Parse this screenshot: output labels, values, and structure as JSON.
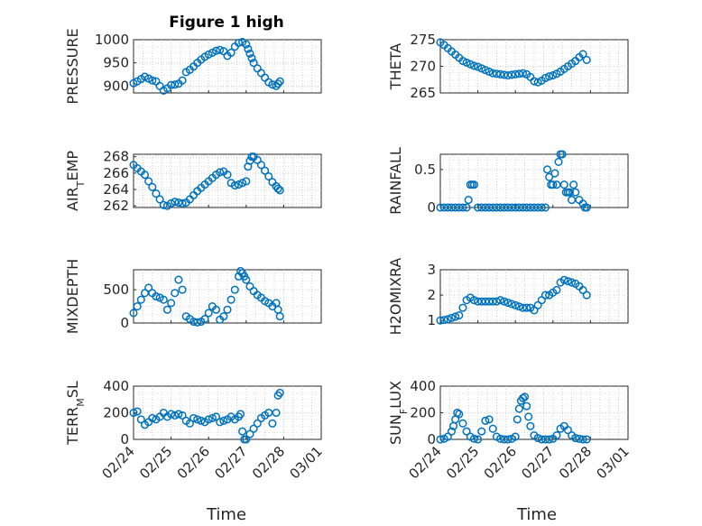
{
  "figure": {
    "title": "Figure 1 high",
    "xlabel": "Time",
    "x_ticks": [
      "02/24",
      "02/25",
      "02/26",
      "02/27",
      "02/28",
      "03/01"
    ],
    "marker_color": "#0072BD"
  },
  "chart_data": [
    {
      "type": "scatter",
      "name": "pressure",
      "ylabel": "PRESSURE",
      "title": "Figure 1 high",
      "xlabel": "",
      "ylim": [
        885,
        1000
      ],
      "y_ticks": [
        "900",
        "950",
        "1000"
      ],
      "y_tick_values": [
        900,
        950,
        1000
      ],
      "x_range": [
        0,
        5
      ],
      "x": [
        0.0,
        0.1,
        0.2,
        0.3,
        0.4,
        0.5,
        0.6,
        0.7,
        0.8,
        0.9,
        1.0,
        1.1,
        1.2,
        1.3,
        1.4,
        1.5,
        1.6,
        1.7,
        1.8,
        1.9,
        2.0,
        2.1,
        2.2,
        2.3,
        2.4,
        2.5,
        2.6,
        2.7,
        2.8,
        2.9,
        3.0,
        3.05,
        3.1,
        3.15,
        3.2,
        3.3,
        3.4,
        3.5,
        3.6,
        3.7,
        3.8,
        3.85,
        3.9
      ],
      "y": [
        906,
        910,
        915,
        920,
        916,
        912,
        910,
        900,
        890,
        895,
        902,
        903,
        905,
        912,
        930,
        935,
        942,
        950,
        957,
        963,
        968,
        972,
        976,
        978,
        975,
        965,
        972,
        985,
        993,
        995,
        990,
        980,
        970,
        960,
        950,
        938,
        928,
        918,
        908,
        903,
        900,
        905,
        910
      ]
    },
    {
      "type": "scatter",
      "name": "theta",
      "ylabel": "THETA",
      "ylim": [
        265,
        275
      ],
      "y_ticks": [
        "265",
        "270",
        "275"
      ],
      "y_tick_values": [
        265,
        270,
        275
      ],
      "x_range": [
        0,
        5
      ],
      "x": [
        0.0,
        0.1,
        0.2,
        0.3,
        0.4,
        0.5,
        0.6,
        0.7,
        0.8,
        0.9,
        1.0,
        1.1,
        1.2,
        1.3,
        1.4,
        1.5,
        1.6,
        1.7,
        1.8,
        1.9,
        2.0,
        2.1,
        2.2,
        2.3,
        2.4,
        2.5,
        2.6,
        2.7,
        2.8,
        2.9,
        3.0,
        3.1,
        3.2,
        3.3,
        3.4,
        3.5,
        3.6,
        3.7,
        3.8,
        3.9
      ],
      "y": [
        274.5,
        274.0,
        273.4,
        272.8,
        272.2,
        271.6,
        271.0,
        270.7,
        270.4,
        270.1,
        269.9,
        269.6,
        269.3,
        269.0,
        268.7,
        268.6,
        268.5,
        268.4,
        268.3,
        268.4,
        268.5,
        268.6,
        268.7,
        268.5,
        268.0,
        267.2,
        267.0,
        267.3,
        267.8,
        268.1,
        268.3,
        268.6,
        269.0,
        269.5,
        270.0,
        270.5,
        271.0,
        271.7,
        272.3,
        271.2
      ]
    },
    {
      "type": "scatter",
      "name": "air_temp",
      "ylabel": "AIR_TEMP",
      "ylim": [
        261.8,
        268.3
      ],
      "y_ticks": [
        "262",
        "264",
        "266",
        "268"
      ],
      "y_tick_values": [
        262,
        264,
        266,
        268
      ],
      "x_range": [
        0,
        5
      ],
      "x": [
        0.0,
        0.1,
        0.2,
        0.3,
        0.4,
        0.5,
        0.6,
        0.7,
        0.8,
        0.9,
        1.0,
        1.1,
        1.2,
        1.3,
        1.4,
        1.5,
        1.6,
        1.7,
        1.8,
        1.9,
        2.0,
        2.1,
        2.2,
        2.3,
        2.4,
        2.5,
        2.6,
        2.7,
        2.8,
        2.9,
        3.0,
        3.05,
        3.1,
        3.15,
        3.2,
        3.3,
        3.4,
        3.5,
        3.6,
        3.7,
        3.8,
        3.85,
        3.9
      ],
      "y": [
        267.0,
        266.6,
        266.2,
        265.8,
        265.0,
        264.3,
        263.5,
        262.8,
        262.1,
        262.0,
        262.3,
        262.5,
        262.4,
        262.3,
        262.4,
        262.8,
        263.3,
        263.8,
        264.2,
        264.6,
        265.0,
        265.4,
        265.8,
        266.1,
        266.2,
        265.8,
        264.8,
        264.5,
        264.6,
        264.8,
        265.0,
        266.8,
        267.5,
        268.0,
        268.0,
        267.6,
        267.0,
        266.3,
        265.6,
        264.9,
        264.4,
        264.1,
        263.9
      ]
    },
    {
      "type": "scatter",
      "name": "rainfall",
      "ylabel": "RAINFALL",
      "ylim": [
        0,
        0.7
      ],
      "y_ticks": [
        "0",
        "0.5"
      ],
      "y_tick_values": [
        0,
        0.5
      ],
      "x_range": [
        0,
        5
      ],
      "x": [
        0.0,
        0.1,
        0.2,
        0.3,
        0.4,
        0.5,
        0.6,
        0.7,
        0.75,
        0.8,
        0.85,
        0.9,
        1.0,
        1.1,
        1.2,
        1.3,
        1.4,
        1.5,
        1.6,
        1.7,
        1.8,
        1.9,
        2.0,
        2.1,
        2.2,
        2.3,
        2.4,
        2.5,
        2.6,
        2.7,
        2.8,
        2.85,
        2.9,
        2.95,
        3.0,
        3.05,
        3.1,
        3.15,
        3.2,
        3.25,
        3.3,
        3.35,
        3.4,
        3.45,
        3.5,
        3.55,
        3.6,
        3.7,
        3.8,
        3.85,
        3.9
      ],
      "y": [
        0,
        0,
        0,
        0,
        0,
        0,
        0,
        0,
        0.1,
        0.3,
        0.3,
        0.3,
        0,
        0,
        0,
        0,
        0,
        0,
        0,
        0,
        0,
        0,
        0,
        0,
        0,
        0,
        0,
        0,
        0,
        0,
        0,
        0.5,
        0.4,
        0.3,
        0.3,
        0.45,
        0.3,
        0.6,
        0.7,
        0.7,
        0.3,
        0.2,
        0.2,
        0.2,
        0.1,
        0.3,
        0.2,
        0.1,
        0.05,
        0,
        0
      ]
    },
    {
      "type": "scatter",
      "name": "mixdepth",
      "ylabel": "MIXDEPTH",
      "ylim": [
        0,
        800
      ],
      "y_ticks": [
        "0",
        "500"
      ],
      "y_tick_values": [
        0,
        500
      ],
      "x_range": [
        0,
        5
      ],
      "x": [
        0.0,
        0.1,
        0.2,
        0.3,
        0.4,
        0.5,
        0.6,
        0.7,
        0.8,
        0.9,
        1.0,
        1.1,
        1.2,
        1.3,
        1.4,
        1.5,
        1.6,
        1.7,
        1.8,
        1.9,
        2.0,
        2.1,
        2.2,
        2.3,
        2.4,
        2.5,
        2.6,
        2.7,
        2.8,
        2.85,
        2.9,
        2.95,
        3.0,
        3.1,
        3.2,
        3.3,
        3.4,
        3.5,
        3.6,
        3.7,
        3.8,
        3.85,
        3.9
      ],
      "y": [
        150,
        250,
        350,
        450,
        530,
        450,
        400,
        380,
        350,
        200,
        300,
        450,
        650,
        500,
        100,
        60,
        20,
        10,
        20,
        60,
        150,
        250,
        200,
        50,
        100,
        200,
        350,
        500,
        700,
        780,
        750,
        700,
        650,
        550,
        480,
        420,
        380,
        330,
        300,
        250,
        300,
        200,
        100
      ]
    },
    {
      "type": "scatter",
      "name": "h2omixra",
      "ylabel": "H2OMIXRA",
      "ylim": [
        0.9,
        3
      ],
      "y_ticks": [
        "1",
        "2",
        "3"
      ],
      "y_tick_values": [
        1,
        2,
        3
      ],
      "x_range": [
        0,
        5
      ],
      "x": [
        0.0,
        0.1,
        0.2,
        0.3,
        0.4,
        0.5,
        0.6,
        0.7,
        0.8,
        0.9,
        1.0,
        1.1,
        1.2,
        1.3,
        1.4,
        1.5,
        1.6,
        1.7,
        1.8,
        1.9,
        2.0,
        2.1,
        2.2,
        2.3,
        2.4,
        2.5,
        2.6,
        2.7,
        2.8,
        2.9,
        3.0,
        3.1,
        3.2,
        3.3,
        3.4,
        3.5,
        3.6,
        3.7,
        3.8,
        3.9
      ],
      "y": [
        1.0,
        1.02,
        1.05,
        1.1,
        1.15,
        1.2,
        1.5,
        1.8,
        1.9,
        1.8,
        1.75,
        1.75,
        1.75,
        1.75,
        1.75,
        1.75,
        1.8,
        1.75,
        1.7,
        1.65,
        1.6,
        1.55,
        1.5,
        1.5,
        1.5,
        1.4,
        1.6,
        1.8,
        2.0,
        2.0,
        2.1,
        2.2,
        2.5,
        2.6,
        2.55,
        2.5,
        2.45,
        2.35,
        2.2,
        2.0
      ]
    },
    {
      "type": "scatter",
      "name": "terr_msl",
      "ylabel": "TERR_MSL",
      "ylim": [
        0,
        400
      ],
      "y_ticks": [
        "0",
        "200",
        "400"
      ],
      "y_tick_values": [
        0,
        200,
        400
      ],
      "x_range": [
        0,
        5
      ],
      "x": [
        0.0,
        0.1,
        0.2,
        0.3,
        0.4,
        0.5,
        0.6,
        0.7,
        0.8,
        0.9,
        1.0,
        1.1,
        1.2,
        1.3,
        1.4,
        1.5,
        1.6,
        1.7,
        1.8,
        1.9,
        2.0,
        2.1,
        2.2,
        2.3,
        2.4,
        2.5,
        2.6,
        2.7,
        2.8,
        2.85,
        2.9,
        2.95,
        3.0,
        3.1,
        3.2,
        3.3,
        3.4,
        3.5,
        3.6,
        3.7,
        3.8,
        3.85,
        3.9
      ],
      "y": [
        200,
        210,
        150,
        110,
        130,
        160,
        150,
        170,
        200,
        170,
        190,
        180,
        190,
        180,
        140,
        120,
        160,
        150,
        140,
        130,
        150,
        160,
        170,
        130,
        140,
        150,
        170,
        150,
        170,
        190,
        60,
        0,
        0,
        40,
        80,
        120,
        160,
        180,
        200,
        120,
        200,
        330,
        350
      ]
    },
    {
      "type": "scatter",
      "name": "sun_flux",
      "ylabel": "SUN_FLUX",
      "ylim": [
        0,
        400
      ],
      "y_ticks": [
        "0",
        "200",
        "400"
      ],
      "y_tick_values": [
        0,
        200,
        400
      ],
      "x_range": [
        0,
        5
      ],
      "x": [
        0.0,
        0.1,
        0.2,
        0.3,
        0.35,
        0.4,
        0.45,
        0.5,
        0.6,
        0.7,
        0.8,
        0.9,
        1.0,
        1.1,
        1.2,
        1.3,
        1.4,
        1.5,
        1.6,
        1.7,
        1.8,
        1.9,
        2.0,
        2.05,
        2.1,
        2.15,
        2.2,
        2.25,
        2.3,
        2.35,
        2.4,
        2.5,
        2.6,
        2.7,
        2.8,
        2.9,
        3.0,
        3.1,
        3.2,
        3.3,
        3.4,
        3.5,
        3.6,
        3.7,
        3.8,
        3.9
      ],
      "y": [
        0,
        5,
        20,
        60,
        100,
        150,
        200,
        190,
        120,
        60,
        20,
        5,
        0,
        60,
        140,
        150,
        80,
        20,
        5,
        0,
        0,
        5,
        20,
        150,
        230,
        290,
        310,
        320,
        250,
        170,
        100,
        30,
        10,
        0,
        0,
        0,
        5,
        30,
        80,
        100,
        70,
        30,
        10,
        5,
        0,
        0
      ]
    }
  ]
}
